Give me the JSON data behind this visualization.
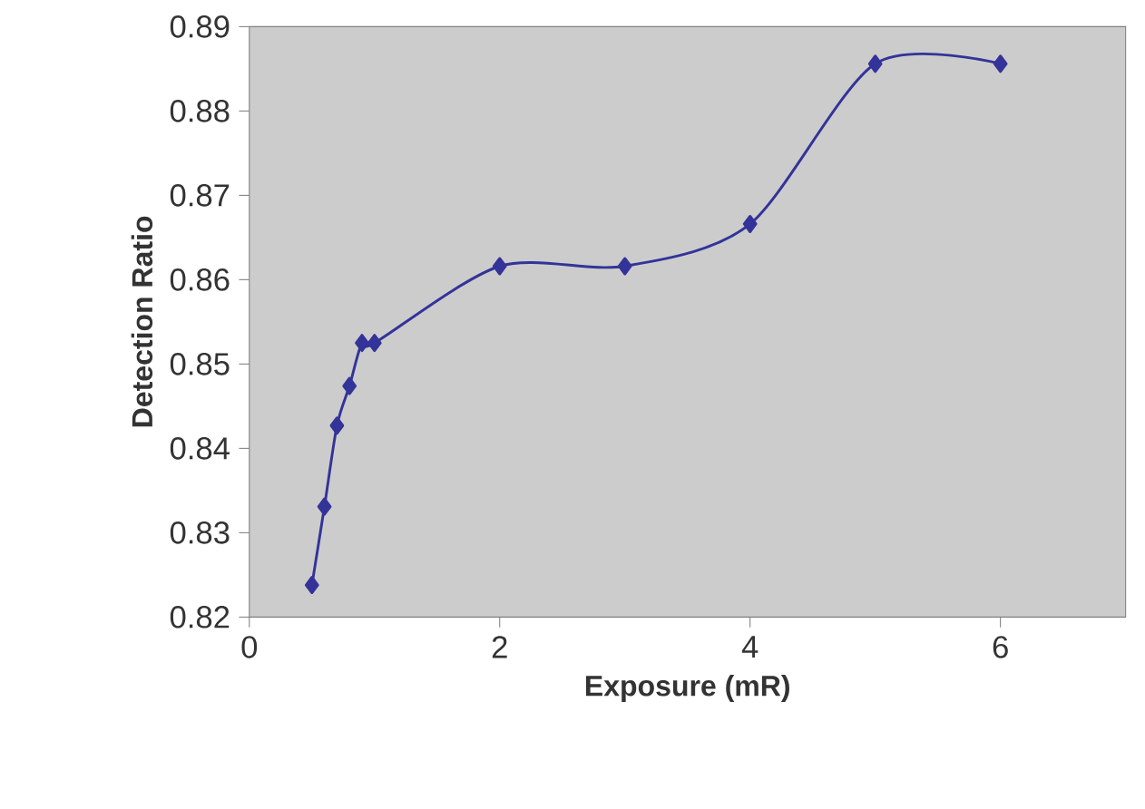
{
  "chart_data": {
    "type": "line",
    "xlabel": "Exposure (mR)",
    "ylabel": "Detection Ratio",
    "series": [
      {
        "color": "#333399",
        "x": [
          0.5,
          0.6,
          0.7,
          0.8,
          0.9,
          1,
          2,
          3,
          4,
          5,
          6
        ],
        "values": [
          0.8238,
          0.8331,
          0.8427,
          0.8474,
          0.8525,
          0.8525,
          0.8616,
          0.8616,
          0.8666,
          0.8856,
          0.8856
        ]
      }
    ],
    "xlim": [
      0,
      7
    ],
    "ylim": [
      0.82,
      0.89
    ],
    "xticks": [
      0,
      2,
      4,
      6
    ],
    "yticks": [
      0.82,
      0.83,
      0.84,
      0.85,
      0.86,
      0.87,
      0.88,
      0.89
    ],
    "grid": false,
    "marker": "diamond",
    "line_style": "solid"
  }
}
